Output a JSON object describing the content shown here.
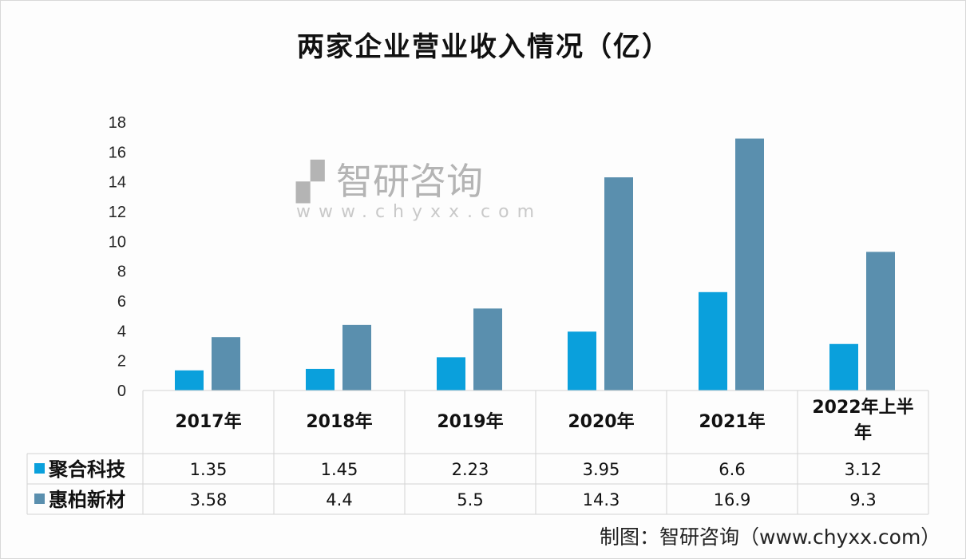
{
  "chart_data": {
    "type": "bar",
    "title": "两家企业营业收入情况（亿）",
    "categories": [
      "2017年",
      "2018年",
      "2019年",
      "2020年",
      "2021年",
      "2022年上半年"
    ],
    "category_lines": [
      [
        "2017年"
      ],
      [
        "2018年"
      ],
      [
        "2019年"
      ],
      [
        "2020年"
      ],
      [
        "2021年"
      ],
      [
        "2022年上半",
        "年"
      ]
    ],
    "series": [
      {
        "name": "聚合科技",
        "color": "#0aa0dc",
        "values": [
          1.35,
          1.45,
          2.23,
          3.95,
          6.6,
          3.12
        ],
        "labels": [
          "1.35",
          "1.45",
          "2.23",
          "3.95",
          "6.6",
          "3.12"
        ]
      },
      {
        "name": "惠柏新材",
        "color": "#5a8fae",
        "values": [
          3.58,
          4.4,
          5.5,
          14.3,
          16.9,
          9.3
        ],
        "labels": [
          "3.58",
          "4.4",
          "5.5",
          "14.3",
          "16.9",
          "9.3"
        ]
      }
    ],
    "ylim": [
      0,
      18
    ],
    "yticks": [
      "0",
      "2",
      "4",
      "6",
      "8",
      "10",
      "12",
      "14",
      "16",
      "18"
    ],
    "xlabel": "",
    "ylabel": "",
    "grid": false,
    "legend": "data-table"
  },
  "source": "制图：智研咨询（www.chyxx.com）",
  "watermark": {
    "name": "智研咨询",
    "url": "www.chyxx.com"
  }
}
